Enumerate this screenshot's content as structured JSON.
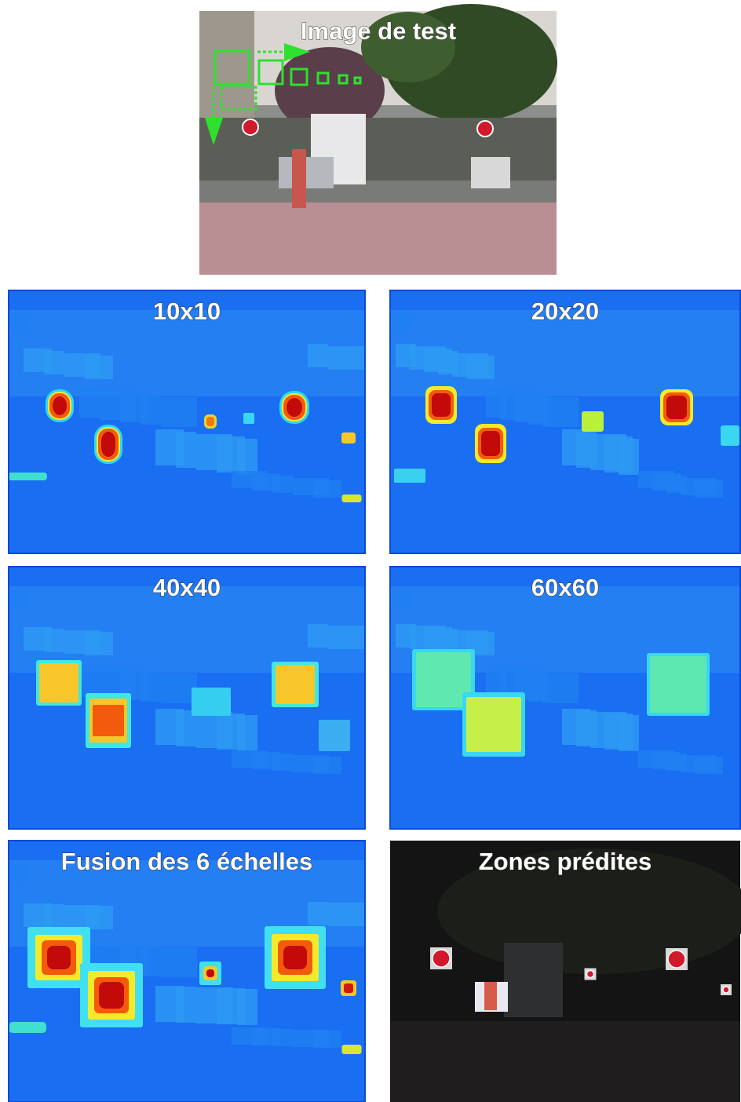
{
  "top_image": {
    "title": "Image de test"
  },
  "panels": [
    {
      "title": "10x10"
    },
    {
      "title": "20x20"
    },
    {
      "title": "40x40"
    },
    {
      "title": "60x60"
    },
    {
      "title": "Fusion des 6 échelles"
    },
    {
      "title": "Zones prédites"
    }
  ]
}
